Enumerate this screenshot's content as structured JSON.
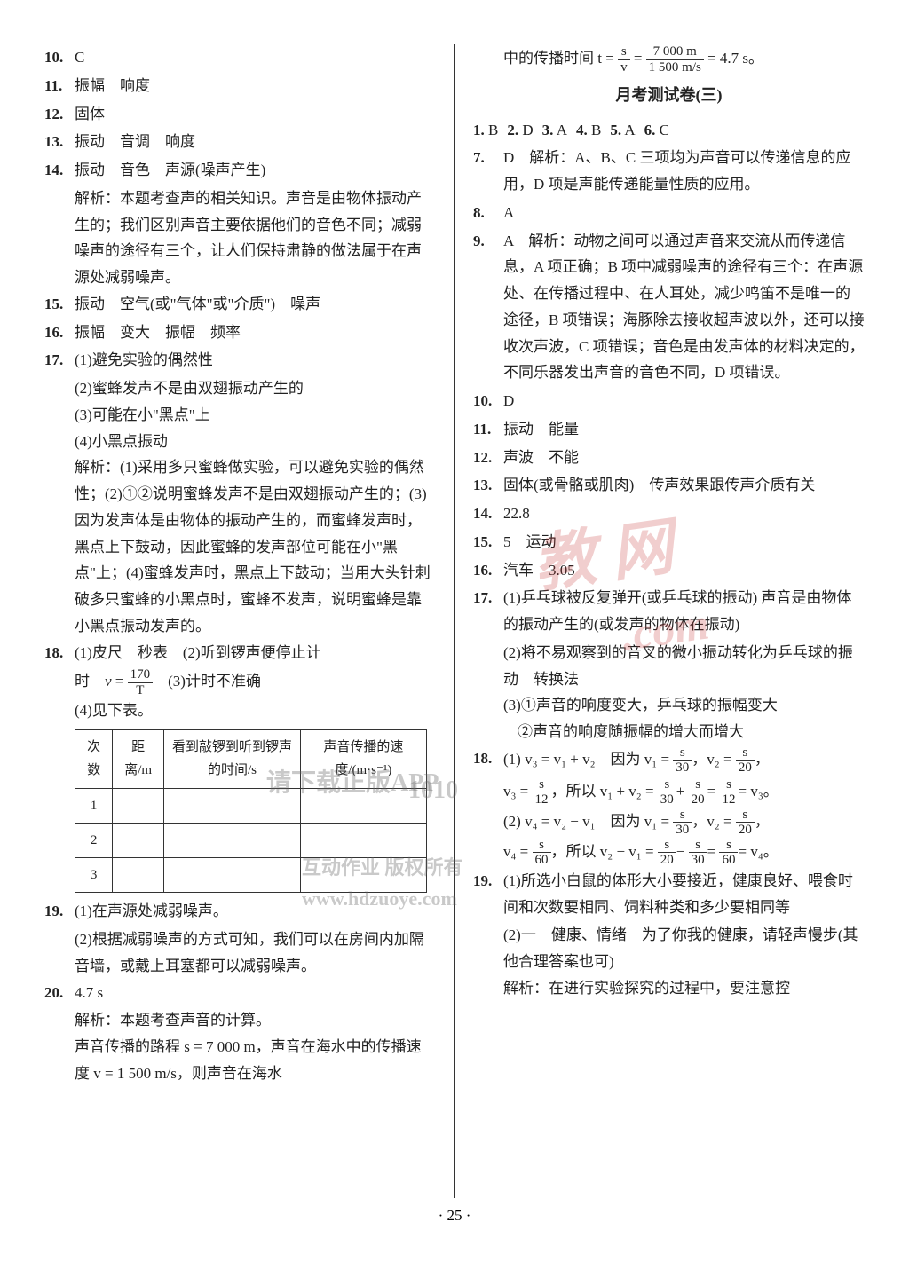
{
  "page_number": "· 25 ·",
  "watermarks": {
    "red1": "教 网",
    "red2": ".com",
    "grey1": "请下载正版APP",
    "grey2": "互动作业 版权所有",
    "grey3": "www.hdzuoye.com",
    "grey4": "互动作业",
    "grey5": "1010"
  },
  "left": {
    "q10": "C",
    "q11": "振幅　响度",
    "q12": "固体",
    "q13": "振动　音调　响度",
    "q14_a": "振动　音色　声源(噪声产生)",
    "q14_b": "解析：本题考查声的相关知识。声音是由物体振动产生的；我们区别声音主要依据他们的音色不同；减弱噪声的途径有三个，让人们保持肃静的做法属于在声源处减弱噪声。",
    "q15": "振动　空气(或\"气体\"或\"介质\")　噪声",
    "q16": "振幅　变大　振幅　频率",
    "q17_1": "(1)避免实验的偶然性",
    "q17_2": "(2)蜜蜂发声不是由双翅振动产生的",
    "q17_3": "(3)可能在小\"黑点\"上",
    "q17_4": "(4)小黑点振动",
    "q17_exp": "解析：(1)采用多只蜜蜂做实验，可以避免实验的偶然性；(2)①②说明蜜蜂发声不是由双翅振动产生的；(3)因为发声体是由物体的振动产生的，而蜜蜂发声时，黑点上下鼓动，因此蜜蜂的发声部位可能在小\"黑点\"上；(4)蜜蜂发声时，黑点上下鼓动；当用大头针刺破多只蜜蜂的小黑点时，蜜蜂不发声，说明蜜蜂是靠小黑点振动发声的。",
    "q18_a": "(1)皮尺　秒表　(2)听到锣声便停止计",
    "q18_b": "时",
    "q18_c": "(3)计时不准确",
    "q18_d": "(4)见下表。",
    "q18_frac_top": "170",
    "q18_frac_bot": "T",
    "table": {
      "h1": "次数",
      "h2": "距离/m",
      "h3": "看到敲锣到听到锣声的时间/s",
      "h4": "声音传播的速度/(m·s⁻¹)",
      "r1": "1",
      "r2": "2",
      "r3": "3"
    },
    "q19_1": "(1)在声源处减弱噪声。",
    "q19_2": "(2)根据减弱噪声的方式可知，我们可以在房间内加隔音墙，或戴上耳塞都可以减弱噪声。",
    "q20_a": "4.7 s",
    "q20_b": "解析：本题考查声音的计算。",
    "q20_c": "声音传播的路程 s = 7 000 m，声音在海水中的传播速度 v = 1 500 m/s，则声音在海水"
  },
  "right": {
    "cont_a": "中的传播时间 t =",
    "cont_frac1_top": "s",
    "cont_frac1_bot": "v",
    "cont_eq": "=",
    "cont_frac2_top": "7 000 m",
    "cont_frac2_bot": "1 500 m/s",
    "cont_b": "= 4.7 s。",
    "section_title": "月考测试卷(三)",
    "mc": [
      {
        "n": "1.",
        "a": "B"
      },
      {
        "n": "2.",
        "a": "D"
      },
      {
        "n": "3.",
        "a": "A"
      },
      {
        "n": "4.",
        "a": "B"
      },
      {
        "n": "5.",
        "a": "A"
      },
      {
        "n": "6.",
        "a": "C"
      }
    ],
    "q7": "D　解析：A、B、C 三项均为声音可以传递信息的应用，D 项是声能传递能量性质的应用。",
    "q8": "A",
    "q9": "A　解析：动物之间可以通过声音来交流从而传递信息，A 项正确；B 项中减弱噪声的途径有三个：在声源处、在传播过程中、在人耳处，减少鸣笛不是唯一的途径，B 项错误；海豚除去接收超声波以外，还可以接收次声波，C 项错误；音色是由发声体的材料决定的，不同乐器发出声音的音色不同，D 项错误。",
    "q10": "D",
    "q11": "振动　能量",
    "q12": "声波　不能",
    "q13": "固体(或骨骼或肌肉)　传声效果跟传声介质有关",
    "q14": "22.8",
    "q15": "5　运动",
    "q16": "汽车　3.05",
    "q17_1": "(1)乒乓球被反复弹开(或乒乓球的振动) 声音是由物体的振动产生的(或发声的物体在振动)",
    "q17_2": "(2)将不易观察到的音叉的微小振动转化为乒乓球的振动　转换法",
    "q17_3": "(3)①声音的响度变大，乒乓球的振幅变大",
    "q17_4": "②声音的响度随振幅的增大而增大",
    "q18_1a": "(1) v₃ = v₁ + v₂　因为 v₁ =",
    "q18_1_f1t": "s",
    "q18_1_f1b": "30",
    "q18_1b": "，v₂ =",
    "q18_1_f2t": "s",
    "q18_1_f2b": "20",
    "q18_1c": "，",
    "q18_1d": "v₃ =",
    "q18_1_f3t": "s",
    "q18_1_f3b": "12",
    "q18_1e": "，所以 v₁ + v₂ =",
    "q18_1_f4t": "s",
    "q18_1_f4b": "30",
    "q18_1f": "+",
    "q18_1_f5t": "s",
    "q18_1_f5b": "20",
    "q18_1g": "=",
    "q18_1_f6t": "s",
    "q18_1_f6b": "12",
    "q18_1h": "= v₃。",
    "q18_2a": "(2) v₄ = v₂ − v₁　因为 v₁ =",
    "q18_2_f1t": "s",
    "q18_2_f1b": "30",
    "q18_2b": "，v₂ =",
    "q18_2_f2t": "s",
    "q18_2_f2b": "20",
    "q18_2c": "，",
    "q18_2d": "v₄ =",
    "q18_2_f3t": "s",
    "q18_2_f3b": "60",
    "q18_2e": "，所以 v₂ − v₁ =",
    "q18_2_f4t": "s",
    "q18_2_f4b": "20",
    "q18_2f": "−",
    "q18_2_f5t": "s",
    "q18_2_f5b": "30",
    "q18_2g": "=",
    "q18_2_f6t": "s",
    "q18_2_f6b": "60",
    "q18_2h": "= v₄。",
    "q19_1": "(1)所选小白鼠的体形大小要接近，健康良好、喂食时间和次数要相同、饲料种类和多少要相同等",
    "q19_2": "(2)一　健康、情绪　为了你我的健康，请轻声慢步(其他合理答案也可)",
    "q19_3": "解析：在进行实验探究的过程中，要注意控"
  }
}
